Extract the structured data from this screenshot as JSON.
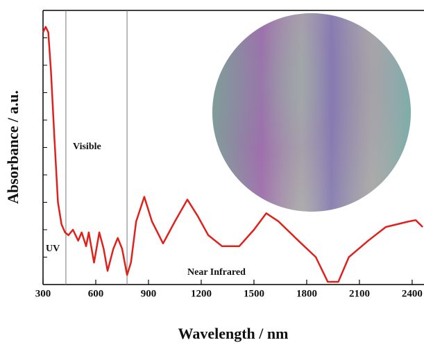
{
  "chart_data": {
    "type": "line",
    "x_label": "Wavelength / nm",
    "y_label": "Absorbance / a.u.",
    "annotations": [
      "UV",
      "Visible",
      "Near Infrared"
    ],
    "region_boundaries": [
      430,
      778
    ],
    "xlim": [
      300,
      2467
    ],
    "xticks": [
      300,
      600,
      900,
      1200,
      1500,
      1800,
      2100,
      2400
    ],
    "ylim": [
      0,
      1
    ],
    "yticks": [
      0.1,
      0.2,
      0.3,
      0.4,
      0.5,
      0.6,
      0.7,
      0.8,
      0.9
    ],
    "series": [
      {
        "color": "#e0201b",
        "x": [
          300,
          315,
          330,
          345,
          365,
          385,
          405,
          425,
          445,
          470,
          500,
          520,
          545,
          560,
          590,
          620,
          645,
          667,
          700,
          725,
          750,
          778,
          800,
          830,
          876,
          920,
          983,
          1050,
          1121,
          1180,
          1240,
          1318,
          1417,
          1500,
          1570,
          1640,
          1753,
          1852,
          1920,
          1980,
          2040,
          2150,
          2250,
          2380,
          2420,
          2460
        ],
        "values": [
          0.92,
          0.94,
          0.92,
          0.78,
          0.53,
          0.3,
          0.22,
          0.19,
          0.18,
          0.2,
          0.16,
          0.19,
          0.14,
          0.19,
          0.08,
          0.19,
          0.13,
          0.05,
          0.13,
          0.17,
          0.13,
          0.035,
          0.08,
          0.23,
          0.32,
          0.23,
          0.15,
          0.23,
          0.31,
          0.25,
          0.18,
          0.14,
          0.14,
          0.2,
          0.26,
          0.23,
          0.16,
          0.1,
          0.01,
          0.01,
          0.1,
          0.16,
          0.21,
          0.23,
          0.235,
          0.21
        ]
      }
    ]
  }
}
